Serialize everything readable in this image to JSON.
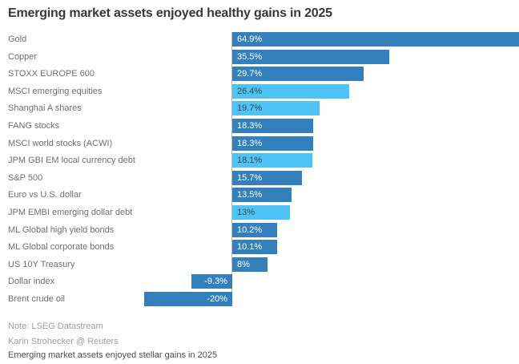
{
  "chart_data": {
    "type": "bar",
    "orientation": "horizontal",
    "title": "Emerging market assets enjoyed healthy gains in 2025",
    "unit": "%",
    "xlim": [
      -20,
      65
    ],
    "grid": false,
    "legend": "none",
    "colors": {
      "dark": "#3380bc",
      "light": "#4dc4f5",
      "axis": "#bdbdbd"
    },
    "rows": [
      {
        "label": "Gold",
        "value": 64.9,
        "display": "64.9%",
        "shade": "dark"
      },
      {
        "label": "Copper",
        "value": 35.5,
        "display": "35.5%",
        "shade": "dark"
      },
      {
        "label": "STOXX EUROPE 600",
        "value": 29.7,
        "display": "29.7%",
        "shade": "dark"
      },
      {
        "label": "MSCI emerging equities",
        "value": 26.4,
        "display": "26.4%",
        "shade": "light"
      },
      {
        "label": "Shanghai A shares",
        "value": 19.7,
        "display": "19.7%",
        "shade": "light"
      },
      {
        "label": "FANG stocks",
        "value": 18.3,
        "display": "18.3%",
        "shade": "dark"
      },
      {
        "label": "MSCI world stocks (ACWI)",
        "value": 18.3,
        "display": "18.3%",
        "shade": "dark"
      },
      {
        "label": "JPM GBI EM local currency debt",
        "value": 18.1,
        "display": "18.1%",
        "shade": "light"
      },
      {
        "label": "S&P 500",
        "value": 15.7,
        "display": "15.7%",
        "shade": "dark"
      },
      {
        "label": "Euro vs U.S. dollar",
        "value": 13.5,
        "display": "13.5%",
        "shade": "dark"
      },
      {
        "label": "JPM EMBI emerging dollar debt",
        "value": 13,
        "display": "13%",
        "shade": "light"
      },
      {
        "label": "ML Global high yield bonds",
        "value": 10.2,
        "display": "10.2%",
        "shade": "dark"
      },
      {
        "label": "ML Global corporate bonds",
        "value": 10.1,
        "display": "10.1%",
        "shade": "dark"
      },
      {
        "label": "US 10Y Treasury",
        "value": 8,
        "display": "8%",
        "shade": "dark"
      },
      {
        "label": "Dollar index",
        "value": -9.3,
        "display": "-9.3%",
        "shade": "dark"
      },
      {
        "label": "Brent crude oil",
        "value": -20,
        "display": "-20%",
        "shade": "dark"
      }
    ]
  },
  "footer": {
    "note": "Note: LSEG Datastream",
    "byline": "Karin Strohecker @ Reuters",
    "caption": "Emerging market assets enjoyed stellar gains in 2025"
  }
}
